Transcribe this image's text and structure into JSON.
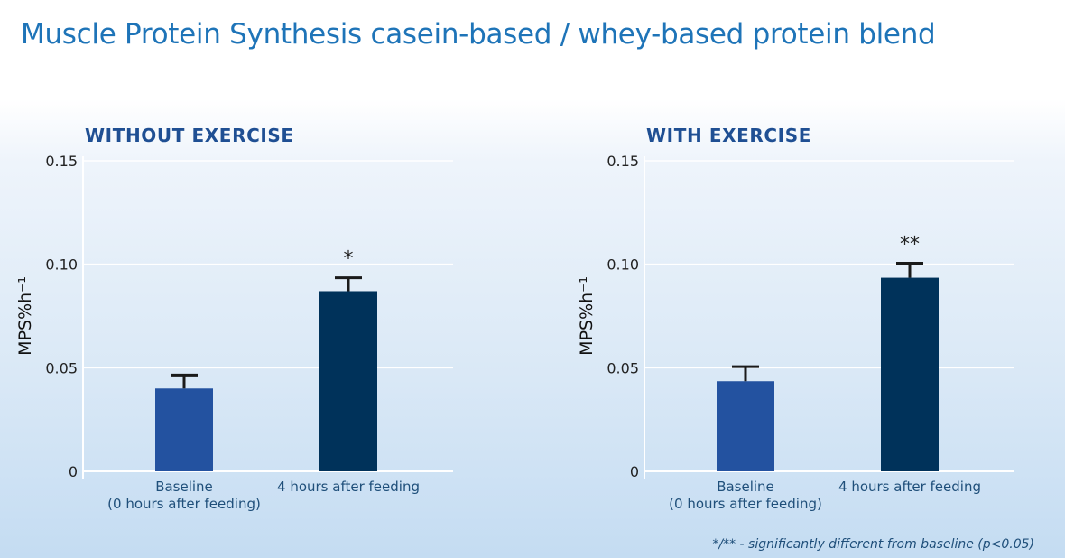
{
  "title": "Muscle Protein Synthesis casein-based / whey-based protein blend",
  "footnote": "*/** - significantly different from baseline (p<0.05)",
  "colors": {
    "baseline": "#2352a0",
    "after": "#00325a",
    "title": "#1e74b8",
    "panel_title": "#1f4f93"
  },
  "chart_data": [
    {
      "type": "bar",
      "title": "WITHOUT EXERCISE",
      "ylabel": "MPS%h⁻¹",
      "xlabel": "",
      "ylim": [
        0,
        0.15
      ],
      "yticks": [
        0,
        0.05,
        0.1,
        0.15
      ],
      "ytick_labels": [
        "0",
        "0.05",
        "0.10",
        "0.15"
      ],
      "categories": [
        "Baseline\n(0 hours after feeding)",
        "4 hours after feeding"
      ],
      "values": [
        0.04,
        0.087
      ],
      "errors": [
        0.0065,
        0.0065
      ],
      "significance": [
        "",
        "*"
      ],
      "grid": true
    },
    {
      "type": "bar",
      "title": "WITH EXERCISE",
      "ylabel": "MPS%h⁻¹",
      "xlabel": "",
      "ylim": [
        0,
        0.15
      ],
      "yticks": [
        0,
        0.05,
        0.1,
        0.15
      ],
      "ytick_labels": [
        "0",
        "0.05",
        "0.10",
        "0.15"
      ],
      "categories": [
        "Baseline\n(0 hours after feeding)",
        "4 hours after feeding"
      ],
      "values": [
        0.0435,
        0.0935
      ],
      "errors": [
        0.007,
        0.007
      ],
      "significance": [
        "",
        "**"
      ],
      "grid": true
    }
  ]
}
